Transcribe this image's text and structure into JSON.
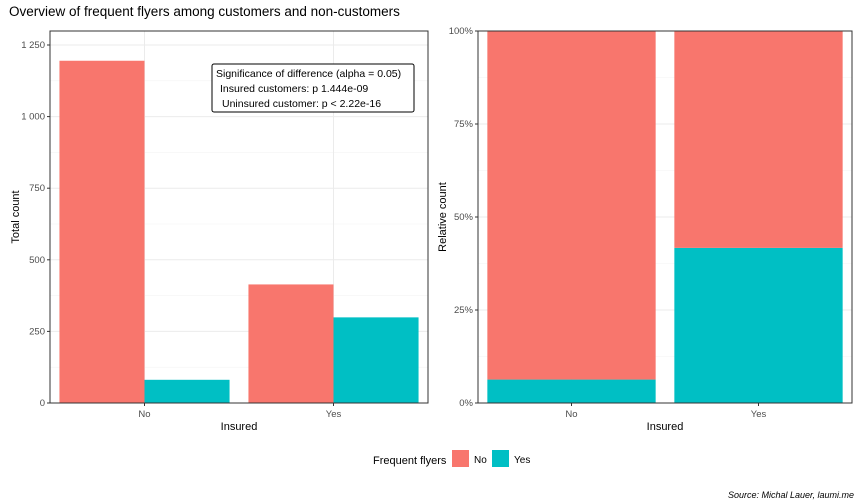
{
  "title": "Overview of frequent flyers among customers and non-customers",
  "source": "Source: Michal Lauer, laumi.me",
  "colors": {
    "no": "#F8766D",
    "yes": "#00BFC4",
    "grid": "#ebebeb",
    "axis": "#333333"
  },
  "legend": {
    "title": "Frequent flyers",
    "labels": [
      "No",
      "Yes"
    ]
  },
  "annotation": {
    "lines": [
      "Significance of difference (alpha = 0.05)",
      "Insured customers: p 1.444e-09",
      "Uninsured customer: p < 2.22e-16"
    ]
  },
  "chart_data": [
    {
      "type": "bar",
      "position": "dodge",
      "categories": [
        "No",
        "Yes"
      ],
      "xlabel": "Insured",
      "ylabel": "Total count",
      "ylim": [
        0,
        1250
      ],
      "yticks": [
        0,
        250,
        500,
        750,
        1000,
        1250
      ],
      "yticklabels": [
        "0",
        "250",
        "500",
        "750",
        "1 000",
        "1 250"
      ],
      "series": [
        {
          "name": "No",
          "values": [
            1195,
            414
          ]
        },
        {
          "name": "Yes",
          "values": [
            81,
            299
          ]
        }
      ]
    },
    {
      "type": "bar",
      "position": "fill",
      "categories": [
        "No",
        "Yes"
      ],
      "xlabel": "Insured",
      "ylabel": "Relative count",
      "ylim": [
        0,
        1
      ],
      "yticks": [
        0,
        0.25,
        0.5,
        0.75,
        1
      ],
      "yticklabels": [
        "0%",
        "25%",
        "50%",
        "75%",
        "100%"
      ],
      "series": [
        {
          "name": "No",
          "values": [
            0.937,
            0.583
          ]
        },
        {
          "name": "Yes",
          "values": [
            0.063,
            0.417
          ]
        }
      ]
    }
  ]
}
